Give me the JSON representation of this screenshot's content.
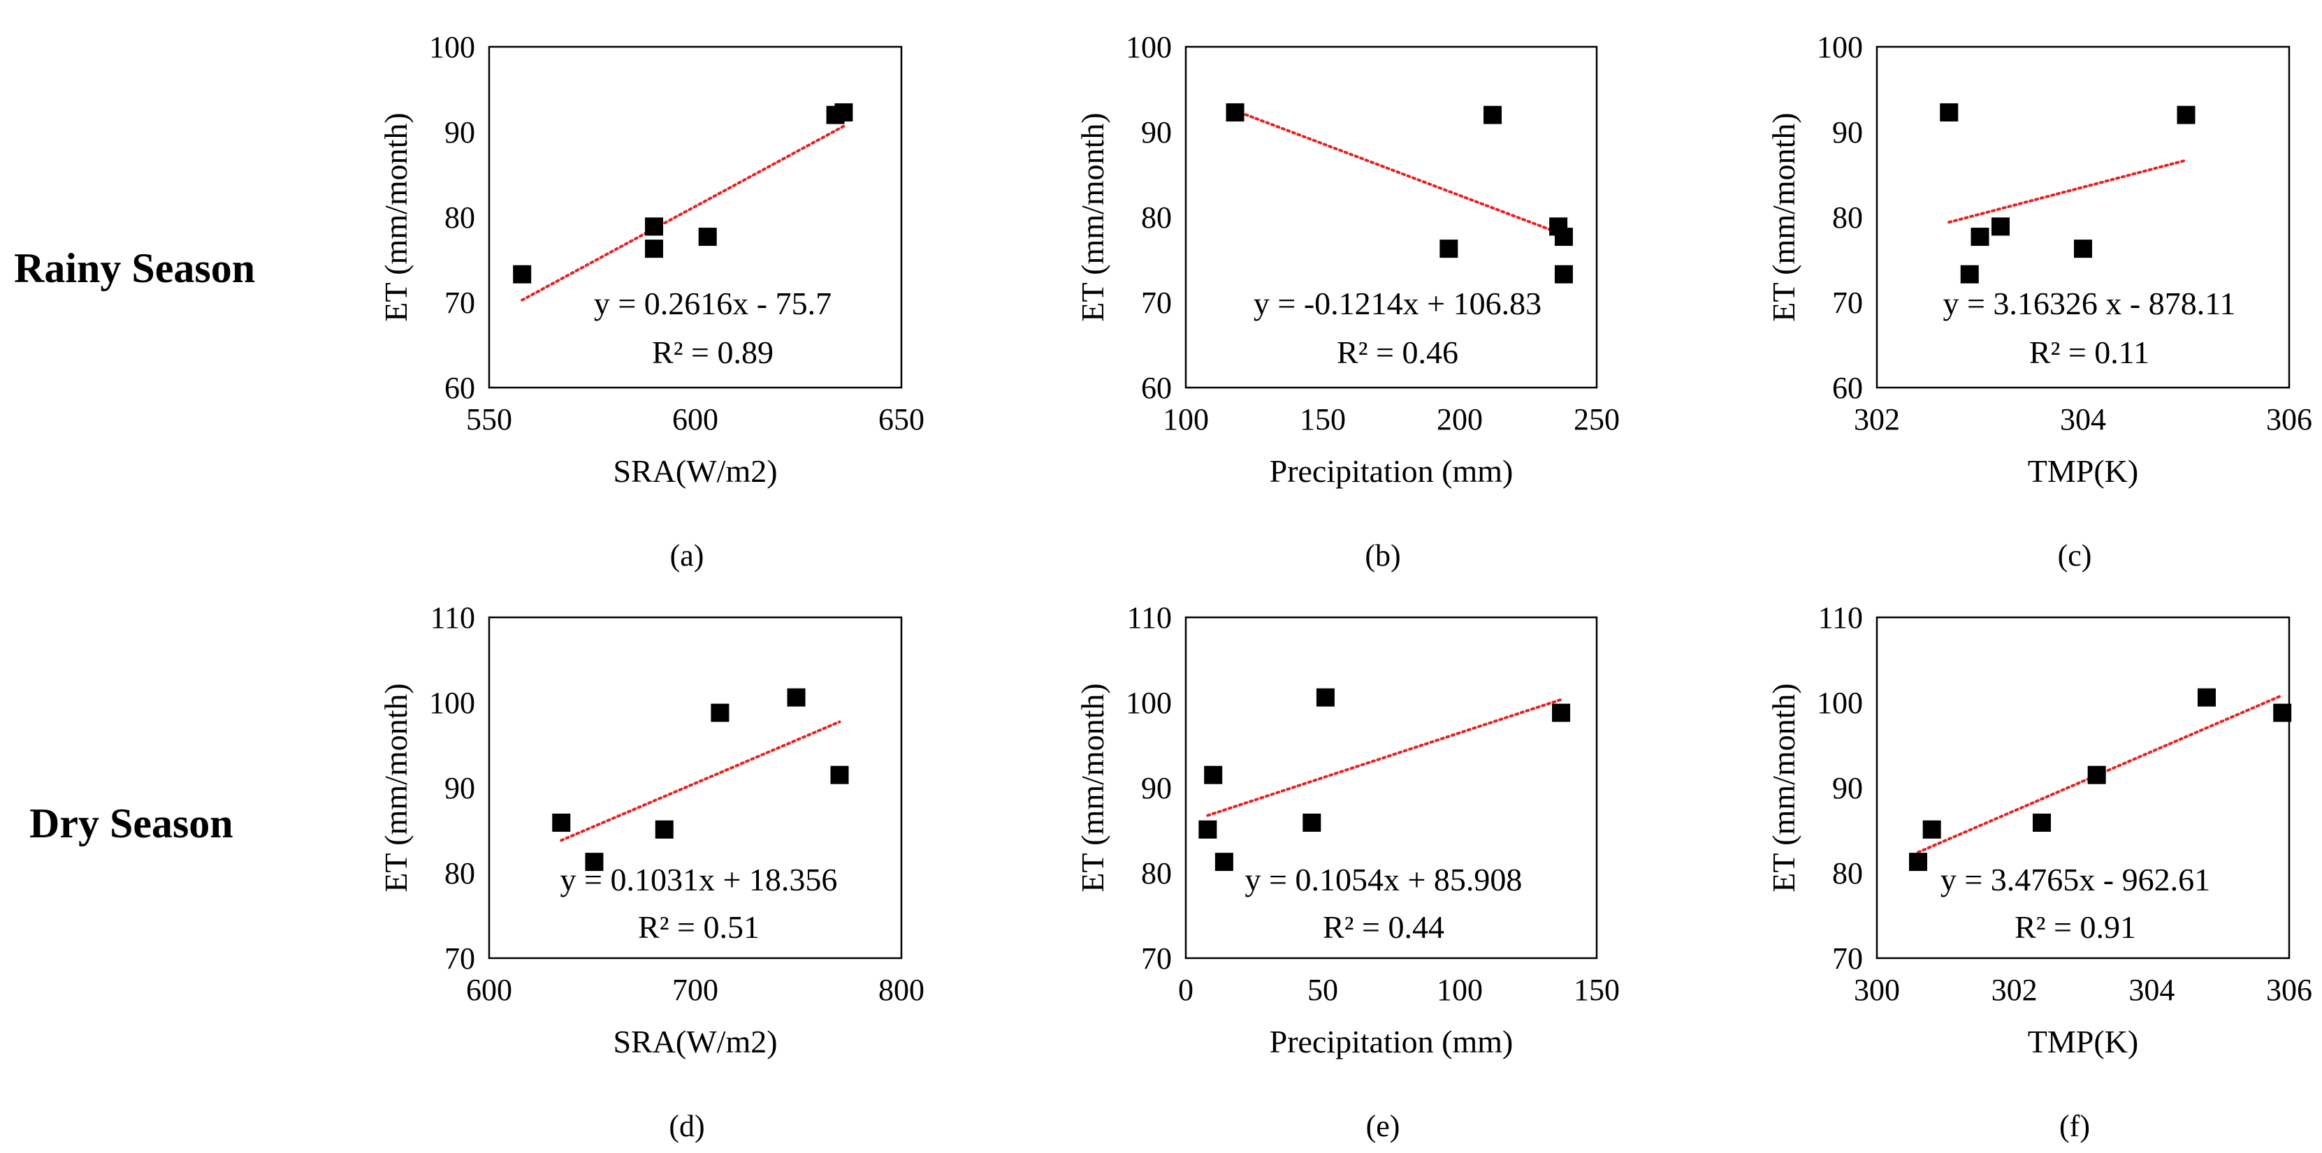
{
  "row_labels": {
    "rainy": "Rainy Season",
    "dry": "Dry Season"
  },
  "colors": {
    "marker": "#000000",
    "trendline": "#e8211f",
    "axes": "#000000"
  },
  "chart_data": [
    {
      "panel": "(a)",
      "type": "scatter",
      "xlabel": "SRA(W/m2)",
      "ylabel": "ET (mm/month)",
      "xlim": [
        550,
        650
      ],
      "ylim": [
        60,
        100
      ],
      "xticks": [
        550,
        600,
        650
      ],
      "yticks": [
        60,
        70,
        80,
        90,
        100
      ],
      "x": [
        558,
        590,
        590,
        603,
        634,
        636
      ],
      "y": [
        73.3,
        78.9,
        76.3,
        77.7,
        92.0,
        92.3
      ],
      "trendline": {
        "slope": 0.2616,
        "intercept": -75.7,
        "x_range": [
          558,
          636
        ]
      },
      "equation": "y = 0.2616x - 75.7",
      "r2": "R² = 0.89"
    },
    {
      "panel": "(b)",
      "type": "scatter",
      "xlabel": "Precipitation (mm)",
      "ylabel": "ET (mm/month)",
      "xlim": [
        100,
        250
      ],
      "ylim": [
        60,
        100
      ],
      "xticks": [
        100,
        150,
        200,
        250
      ],
      "yticks": [
        60,
        70,
        80,
        90,
        100
      ],
      "x": [
        118,
        196,
        212,
        236,
        238,
        238
      ],
      "y": [
        92.3,
        76.3,
        92.0,
        78.9,
        77.7,
        73.3
      ],
      "trendline": {
        "slope": -0.1214,
        "intercept": 106.83,
        "x_range": [
          118,
          238
        ]
      },
      "equation": "y = -0.1214x + 106.83",
      "r2": "R² = 0.46"
    },
    {
      "panel": "(c)",
      "type": "scatter",
      "xlabel": "TMP(K)",
      "ylabel": "ET (mm/month)",
      "xlim": [
        302,
        306
      ],
      "ylim": [
        60,
        100
      ],
      "xticks": [
        302,
        304,
        306
      ],
      "yticks": [
        60,
        70,
        80,
        90,
        100
      ],
      "x": [
        302.7,
        302.9,
        303.0,
        303.2,
        304.0,
        305.0
      ],
      "y": [
        92.3,
        73.3,
        77.7,
        78.9,
        76.3,
        92.0
      ],
      "trendline": {
        "slope": 3.16326,
        "intercept": -878.11,
        "x_range": [
          302.7,
          305.0
        ]
      },
      "equation": "y = 3.16326 x - 878.11",
      "r2": "R² = 0.11"
    },
    {
      "panel": "(d)",
      "type": "scatter",
      "xlabel": "SRA(W/m2)",
      "ylabel": "ET (mm/month)",
      "xlim": [
        600,
        800
      ],
      "ylim": [
        70,
        110
      ],
      "xticks": [
        600,
        700,
        800
      ],
      "yticks": [
        70,
        80,
        90,
        100,
        110
      ],
      "x": [
        635,
        651,
        685,
        712,
        749,
        770
      ],
      "y": [
        85.9,
        81.3,
        85.1,
        98.8,
        100.6,
        91.5
      ],
      "trendline": {
        "slope": 0.1031,
        "intercept": 18.356,
        "x_range": [
          635,
          770
        ]
      },
      "equation": "y = 0.1031x + 18.356",
      "r2": "R² = 0.51"
    },
    {
      "panel": "(e)",
      "type": "scatter",
      "xlabel": "Precipitation (mm)",
      "ylabel": "ET (mm/month)",
      "xlim": [
        0,
        150
      ],
      "ylim": [
        70,
        110
      ],
      "xticks": [
        0,
        50,
        100,
        150
      ],
      "yticks": [
        70,
        80,
        90,
        100,
        110
      ],
      "x": [
        8,
        10,
        14,
        46,
        51,
        137
      ],
      "y": [
        85.1,
        91.5,
        81.3,
        85.9,
        100.6,
        98.8
      ],
      "trendline": {
        "slope": 0.1054,
        "intercept": 85.908,
        "x_range": [
          8,
          137
        ]
      },
      "equation": "y = 0.1054x + 85.908",
      "r2": "R² = 0.44"
    },
    {
      "panel": "(f)",
      "type": "scatter",
      "xlabel": "TMP(K)",
      "ylabel": "ET (mm/month)",
      "xlim": [
        300,
        306
      ],
      "ylim": [
        70,
        110
      ],
      "xticks": [
        300,
        302,
        304,
        306
      ],
      "yticks": [
        70,
        80,
        90,
        100,
        110
      ],
      "x": [
        300.6,
        300.8,
        302.4,
        303.2,
        304.8,
        305.9
      ],
      "y": [
        81.3,
        85.1,
        85.9,
        91.5,
        100.6,
        98.8
      ],
      "trendline": {
        "slope": 3.4765,
        "intercept": -962.61,
        "x_range": [
          300.6,
          305.9
        ]
      },
      "equation": "y = 3.4765x - 962.61",
      "r2": "R² = 0.91"
    }
  ]
}
